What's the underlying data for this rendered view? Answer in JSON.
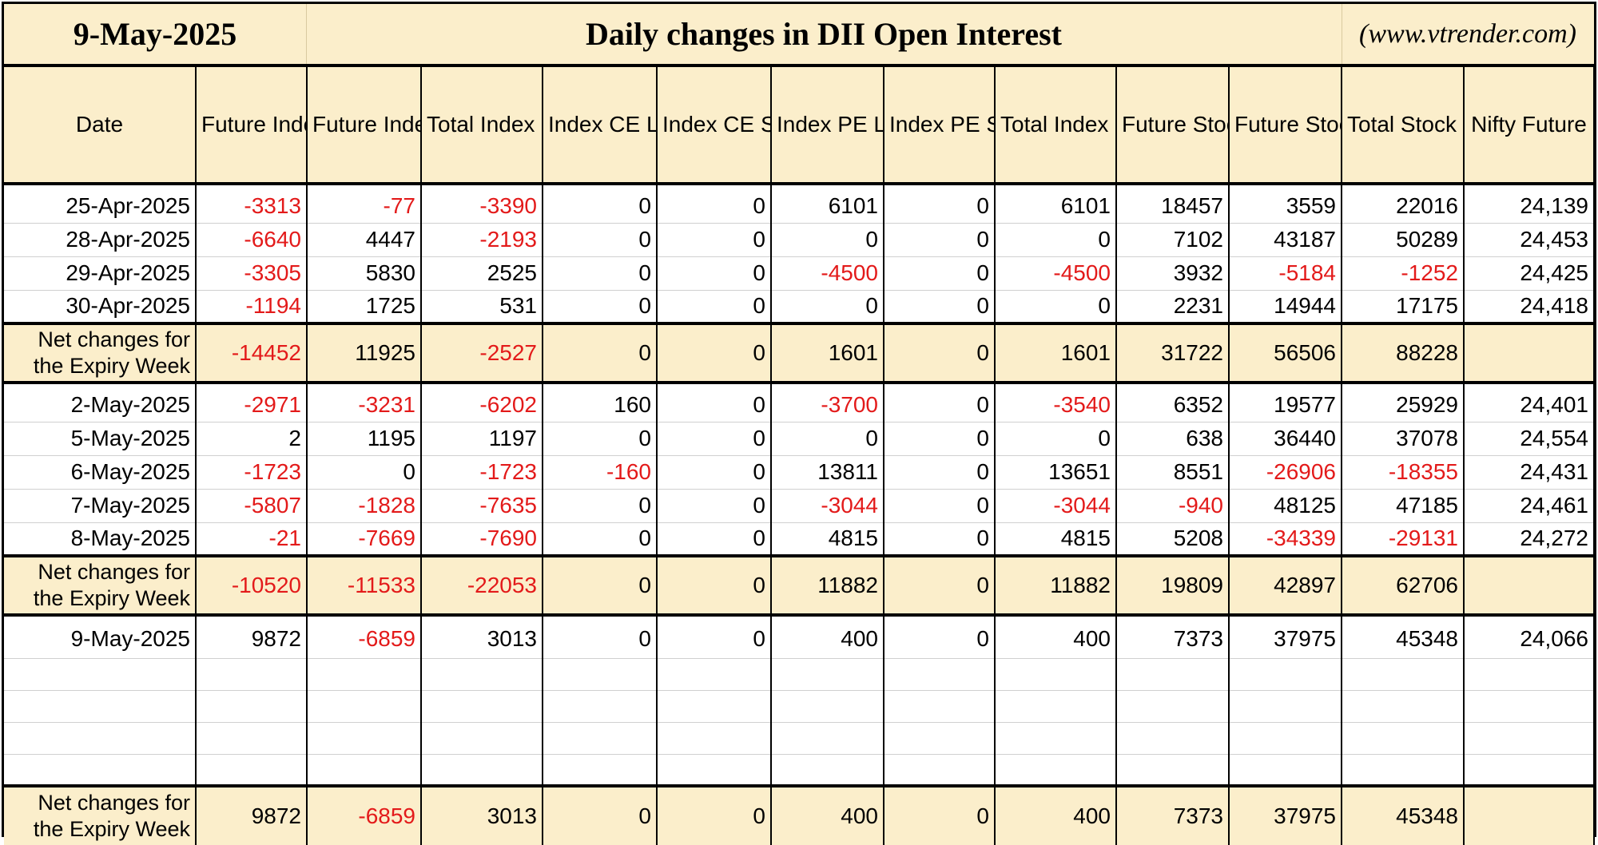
{
  "header": {
    "date": "9-May-2025",
    "title": "Daily changes in DII Open Interest",
    "website": "(www.vtrender.com)"
  },
  "columns": [
    "Date",
    "Future Index Long (OI Change)",
    "Future Index Short (OI Change)",
    "Total Index Future OI Change",
    "Index CE Long (OI Change)",
    "Index CE Short (OI Change)",
    "Index PE Long (OI Change)",
    "Index PE Short (OI Change)",
    "Total Index Options OI Change",
    "Future Stock Long (OI Change)",
    "Future Stock Short (OI Change)",
    "Total Stock Future OI Change",
    "Nifty Future"
  ],
  "sections": [
    {
      "rows": [
        [
          "25-Apr-2025",
          "-3313",
          "-77",
          "-3390",
          "0",
          "0",
          "6101",
          "0",
          "6101",
          "18457",
          "3559",
          "22016",
          "24,139"
        ],
        [
          "28-Apr-2025",
          "-6640",
          "4447",
          "-2193",
          "0",
          "0",
          "0",
          "0",
          "0",
          "7102",
          "43187",
          "50289",
          "24,453"
        ],
        [
          "29-Apr-2025",
          "-3305",
          "5830",
          "2525",
          "0",
          "0",
          "-4500",
          "0",
          "-4500",
          "3932",
          "-5184",
          "-1252",
          "24,425"
        ],
        [
          "30-Apr-2025",
          "-1194",
          "1725",
          "531",
          "0",
          "0",
          "0",
          "0",
          "0",
          "2231",
          "14944",
          "17175",
          "24,418"
        ]
      ],
      "net": [
        "Net changes for the Expiry Week",
        "-14452",
        "11925",
        "-2527",
        "0",
        "0",
        "1601",
        "0",
        "1601",
        "31722",
        "56506",
        "88228",
        ""
      ]
    },
    {
      "rows": [
        [
          "2-May-2025",
          "-2971",
          "-3231",
          "-6202",
          "160",
          "0",
          "-3700",
          "0",
          "-3540",
          "6352",
          "19577",
          "25929",
          "24,401"
        ],
        [
          "5-May-2025",
          "2",
          "1195",
          "1197",
          "0",
          "0",
          "0",
          "0",
          "0",
          "638",
          "36440",
          "37078",
          "24,554"
        ],
        [
          "6-May-2025",
          "-1723",
          "0",
          "-1723",
          "-160",
          "0",
          "13811",
          "0",
          "13651",
          "8551",
          "-26906",
          "-18355",
          "24,431"
        ],
        [
          "7-May-2025",
          "-5807",
          "-1828",
          "-7635",
          "0",
          "0",
          "-3044",
          "0",
          "-3044",
          "-940",
          "48125",
          "47185",
          "24,461"
        ],
        [
          "8-May-2025",
          "-21",
          "-7669",
          "-7690",
          "0",
          "0",
          "4815",
          "0",
          "4815",
          "5208",
          "-34339",
          "-29131",
          "24,272"
        ]
      ],
      "net": [
        "Net changes for the Expiry Week",
        "-10520",
        "-11533",
        "-22053",
        "0",
        "0",
        "11882",
        "0",
        "11882",
        "19809",
        "42897",
        "62706",
        ""
      ]
    },
    {
      "rows": [
        [
          "9-May-2025",
          "9872",
          "-6859",
          "3013",
          "0",
          "0",
          "400",
          "0",
          "400",
          "7373",
          "37975",
          "45348",
          "24,066"
        ]
      ],
      "blank_rows": 4,
      "net": [
        "Net changes for the Expiry Week",
        "9872",
        "-6859",
        "3013",
        "0",
        "0",
        "400",
        "0",
        "400",
        "7373",
        "37975",
        "45348",
        ""
      ]
    }
  ],
  "colors": {
    "header_bg": "#fbeecb",
    "negative": "#e31a1a",
    "positive": "#000000",
    "border": "#000000"
  }
}
